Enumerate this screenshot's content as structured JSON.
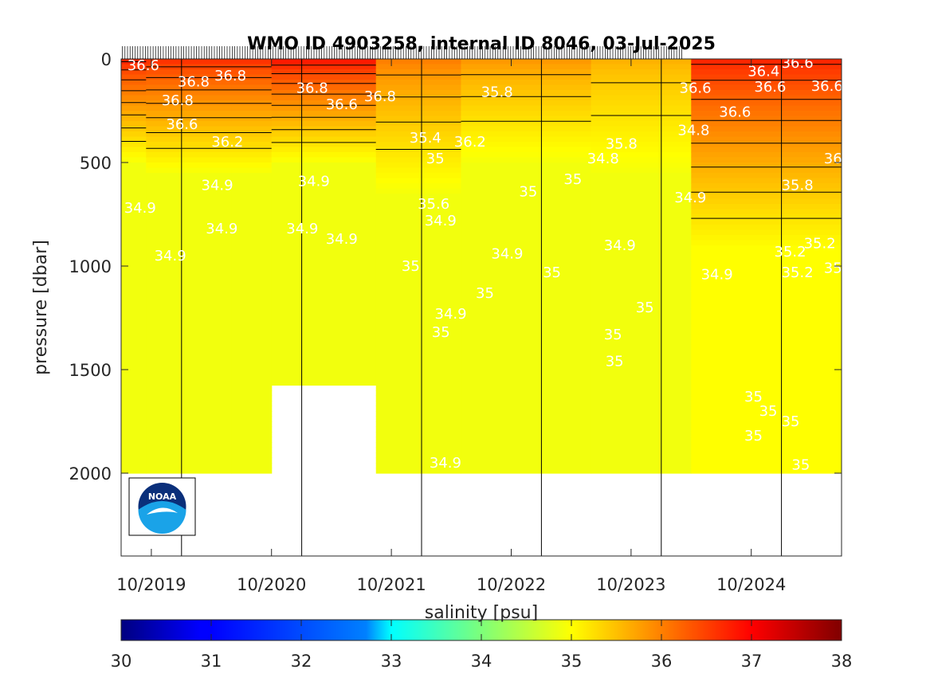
{
  "chart_data": {
    "type": "heatmap",
    "title": "WMO ID 4903258, internal ID 8046, 03-Jul-2025",
    "xlabel": "",
    "ylabel": "pressure [dbar]",
    "x_axis": {
      "type": "date",
      "range": [
        "2019-07-01",
        "2025-07-03"
      ],
      "ticks": [
        {
          "date": "2019-10-01",
          "label": "10/2019"
        },
        {
          "date": "2020-10-01",
          "label": "10/2020"
        },
        {
          "date": "2021-10-01",
          "label": "10/2021"
        },
        {
          "date": "2022-10-01",
          "label": "10/2022"
        },
        {
          "date": "2023-10-01",
          "label": "10/2023"
        },
        {
          "date": "2024-10-01",
          "label": "10/2024"
        }
      ]
    },
    "y_axis": {
      "reversed": true,
      "range": [
        0,
        2400
      ],
      "ticks": [
        0,
        500,
        1000,
        1500,
        2000
      ]
    },
    "year_markers": [
      "2020-01-01",
      "2021-01-01",
      "2022-01-01",
      "2023-01-01",
      "2024-01-01",
      "2025-01-01"
    ],
    "colorbar": {
      "label": "salinity [psu]",
      "range": [
        30,
        38
      ],
      "ticks": [
        30,
        31,
        32,
        33,
        34,
        35,
        36,
        37,
        38
      ],
      "colormap": "jet"
    },
    "salinity_sections": [
      {
        "start": "2019-07-01",
        "end": "2019-09-15",
        "surface": 36.7,
        "deep": 34.9,
        "thermocline_depth": 500,
        "max_depth": 2000
      },
      {
        "start": "2019-09-15",
        "end": "2020-06-01",
        "surface": 36.6,
        "deep": 34.9,
        "thermocline_depth": 550,
        "max_depth": 2000
      },
      {
        "start": "2020-06-01",
        "end": "2020-10-01",
        "surface": 36.6,
        "deep": 34.9,
        "thermocline_depth": 550,
        "max_depth": 2000
      },
      {
        "start": "2020-10-01",
        "end": "2021-08-15",
        "surface": 36.8,
        "deep": 34.9,
        "thermocline_depth": 500,
        "max_depth": 1560
      },
      {
        "start": "2021-08-15",
        "end": "2022-05-01",
        "surface": 36.0,
        "deep": 34.9,
        "thermocline_depth": 650,
        "max_depth": 2000
      },
      {
        "start": "2022-05-01",
        "end": "2023-06-01",
        "surface": 35.8,
        "deep": 34.9,
        "thermocline_depth": 500,
        "max_depth": 2000
      },
      {
        "start": "2023-06-01",
        "end": "2024-04-01",
        "surface": 35.6,
        "deep": 34.9,
        "thermocline_depth": 550,
        "max_depth": 2000
      },
      {
        "start": "2024-04-01",
        "end": "2025-07-03",
        "surface": 36.7,
        "deep": 35.0,
        "thermocline_depth": 900,
        "max_depth": 2000
      }
    ],
    "contour_labels": [
      {
        "text": "36.6",
        "date": "2019-07-20",
        "p": 30
      },
      {
        "text": "36.8",
        "date": "2019-11-01",
        "p": 200
      },
      {
        "text": "36.6",
        "date": "2019-11-15",
        "p": 315
      },
      {
        "text": "36.2",
        "date": "2020-04-01",
        "p": 400
      },
      {
        "text": "34.9",
        "date": "2020-03-01",
        "p": 610
      },
      {
        "text": "34.9",
        "date": "2019-07-10",
        "p": 720
      },
      {
        "text": "34.9",
        "date": "2020-03-15",
        "p": 820
      },
      {
        "text": "34.9",
        "date": "2019-10-10",
        "p": 950
      },
      {
        "text": "36.8",
        "date": "2019-12-20",
        "p": 110
      },
      {
        "text": "36.8",
        "date": "2020-04-10",
        "p": 80
      },
      {
        "text": "36.8",
        "date": "2020-12-15",
        "p": 140
      },
      {
        "text": "36.6",
        "date": "2021-03-15",
        "p": 220
      },
      {
        "text": "36.8",
        "date": "2021-07-10",
        "p": 180
      },
      {
        "text": "34.9",
        "date": "2020-12-20",
        "p": 590
      },
      {
        "text": "34.9",
        "date": "2020-11-15",
        "p": 820
      },
      {
        "text": "34.9",
        "date": "2021-03-15",
        "p": 870
      },
      {
        "text": "35.4",
        "date": "2021-11-25",
        "p": 380
      },
      {
        "text": "35.6",
        "date": "2021-12-20",
        "p": 700
      },
      {
        "text": "34.9",
        "date": "2022-01-10",
        "p": 780
      },
      {
        "text": "35",
        "date": "2022-01-15",
        "p": 480
      },
      {
        "text": "35",
        "date": "2021-11-01",
        "p": 1000
      },
      {
        "text": "34.9",
        "date": "2022-02-10",
        "p": 1230
      },
      {
        "text": "35",
        "date": "2022-02-01",
        "p": 1320
      },
      {
        "text": "36.2",
        "date": "2022-04-10",
        "p": 400
      },
      {
        "text": "35.8",
        "date": "2022-07-01",
        "p": 160
      },
      {
        "text": "35",
        "date": "2022-06-15",
        "p": 1130
      },
      {
        "text": "34.9",
        "date": "2022-08-01",
        "p": 940
      },
      {
        "text": "35",
        "date": "2022-10-25",
        "p": 640
      },
      {
        "text": "35",
        "date": "2023-01-05",
        "p": 1030
      },
      {
        "text": "35",
        "date": "2023-03-10",
        "p": 580
      },
      {
        "text": "34.8",
        "date": "2023-05-20",
        "p": 480
      },
      {
        "text": "35.8",
        "date": "2023-07-15",
        "p": 410
      },
      {
        "text": "35",
        "date": "2023-07-10",
        "p": 1330
      },
      {
        "text": "35",
        "date": "2023-07-15",
        "p": 1460
      },
      {
        "text": "34.9",
        "date": "2023-07-10",
        "p": 900
      },
      {
        "text": "35",
        "date": "2023-10-15",
        "p": 1200
      },
      {
        "text": "34.9",
        "date": "2024-02-10",
        "p": 670
      },
      {
        "text": "34.8",
        "date": "2024-02-20",
        "p": 345
      },
      {
        "text": "36.6",
        "date": "2024-02-25",
        "p": 140
      },
      {
        "text": "36.6",
        "date": "2024-06-25",
        "p": 255
      },
      {
        "text": "36.4",
        "date": "2024-09-20",
        "p": 60
      },
      {
        "text": "36.6",
        "date": "2024-10-10",
        "p": 135
      },
      {
        "text": "36.6",
        "date": "2025-01-01",
        "p": 20
      },
      {
        "text": "36.6",
        "date": "2025-04-01",
        "p": 130
      },
      {
        "text": "36",
        "date": "2025-05-10",
        "p": 480
      },
      {
        "text": "35.8",
        "date": "2025-01-01",
        "p": 610
      },
      {
        "text": "35.2",
        "date": "2024-12-10",
        "p": 930
      },
      {
        "text": "35.2",
        "date": "2025-03-10",
        "p": 890
      },
      {
        "text": "35.2",
        "date": "2025-01-01",
        "p": 1030
      },
      {
        "text": "35",
        "date": "2025-05-10",
        "p": 1010
      },
      {
        "text": "34.9",
        "date": "2024-05-01",
        "p": 1040
      },
      {
        "text": "35",
        "date": "2024-09-10",
        "p": 1630
      },
      {
        "text": "35",
        "date": "2024-10-25",
        "p": 1700
      },
      {
        "text": "35",
        "date": "2024-09-10",
        "p": 1820
      },
      {
        "text": "35",
        "date": "2025-01-01",
        "p": 1750
      },
      {
        "text": "35",
        "date": "2025-02-01",
        "p": 1960
      },
      {
        "text": "34.9",
        "date": "2022-01-25",
        "p": 1950
      }
    ],
    "logo_text": "NOAA"
  }
}
